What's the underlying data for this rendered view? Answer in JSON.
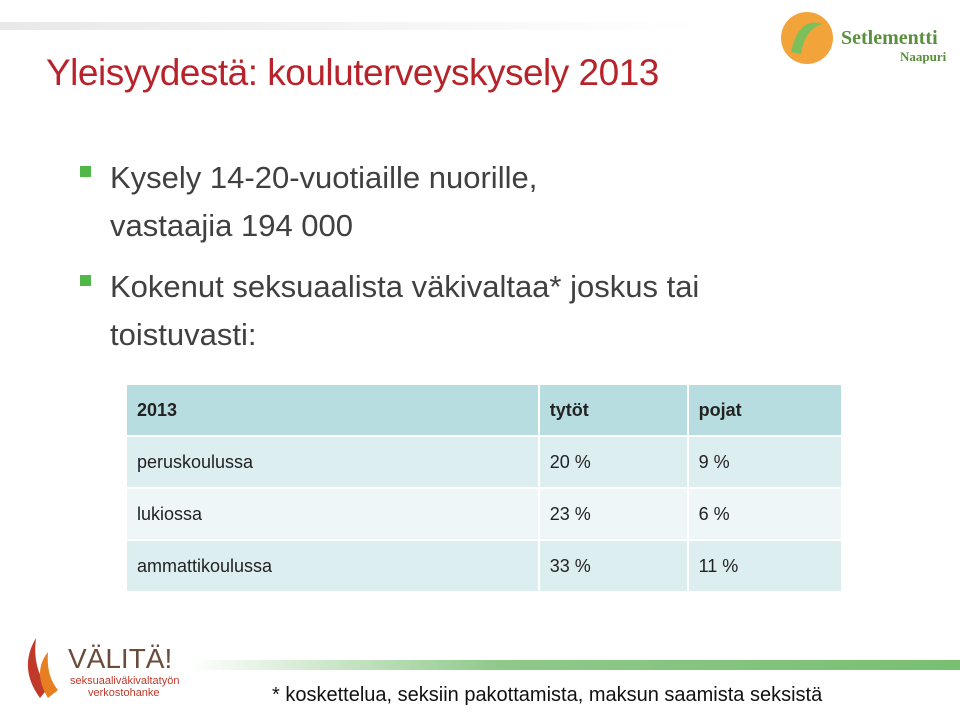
{
  "title": "Yleisyydestä: kouluterveyskysely 2013",
  "bullets": [
    {
      "lines": [
        "Kysely 14-20-vuotiaille nuorille,",
        "vastaajia 194 000"
      ]
    },
    {
      "lines": [
        "Kokenut seksuaalista väkivaltaa* joskus tai",
        "toistuvasti:"
      ]
    }
  ],
  "table": {
    "header": [
      "2013",
      "tytöt",
      "pojat"
    ],
    "rows": [
      [
        "peruskoulussa",
        "20 %",
        "9 %"
      ],
      [
        "lukiossa",
        "23 %",
        "6 %"
      ],
      [
        "ammattikoulussa",
        "33 %",
        "11 %"
      ]
    ]
  },
  "footnote": "* koskettelua, seksiin pakottamista, maksun saamista seksistä",
  "logos": {
    "setlementti": {
      "name": "Setlementti",
      "sub": "Naapuri"
    },
    "valita": {
      "name": "VÄLITÄ!",
      "line1": "seksuaaliväkivaltatyön",
      "line2": "verkostohanke"
    }
  }
}
